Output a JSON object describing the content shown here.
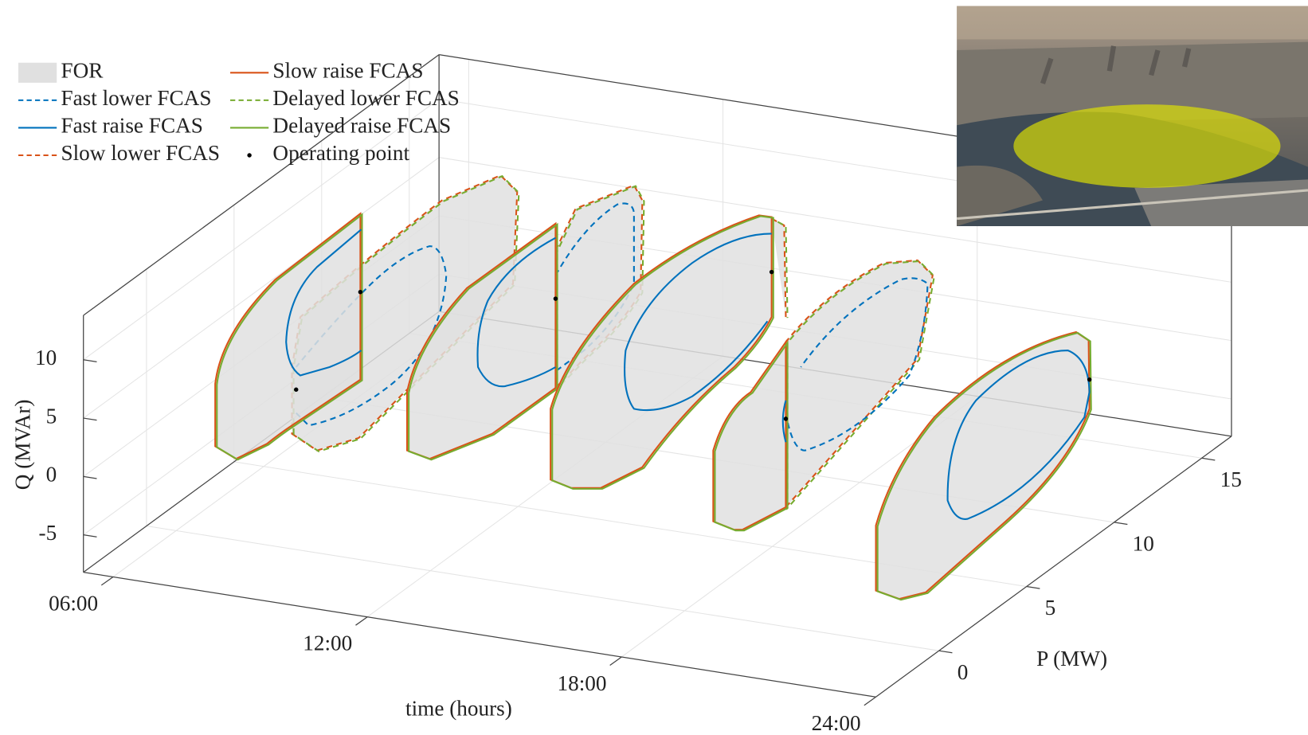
{
  "chart_data": {
    "type": "3d-region",
    "xlabel": "time (hours)",
    "ylabel": "P (MW)",
    "zlabel": "Q (MVAr)",
    "xlim": [
      5.3,
      24
    ],
    "xticks": [
      {
        "value": 6,
        "label": "06:00"
      },
      {
        "value": 12,
        "label": "12:00"
      },
      {
        "value": 18,
        "label": "18:00"
      },
      {
        "value": 24,
        "label": "24:00"
      }
    ],
    "ylim": [
      -3.6,
      16.7
    ],
    "yticks": [
      0,
      5,
      10,
      15
    ],
    "zlim": [
      -8.2,
      13.8
    ],
    "zticks": [
      -5,
      0,
      5,
      10
    ],
    "grid": true,
    "legend": "upper left",
    "series": [
      {
        "name": "FOR",
        "color": "#e0e0e0",
        "style": "patch"
      },
      {
        "name": "Fast lower FCAS",
        "color": "#0072bd",
        "style": "dashed"
      },
      {
        "name": "Fast raise FCAS",
        "color": "#0072bd",
        "style": "solid"
      },
      {
        "name": "Slow lower FCAS",
        "color": "#d95319",
        "style": "dashed"
      },
      {
        "name": "Slow raise FCAS",
        "color": "#d95319",
        "style": "solid"
      },
      {
        "name": "Delayed lower FCAS",
        "color": "#77ac30",
        "style": "dashed"
      },
      {
        "name": "Delayed raise FCAS",
        "color": "#77ac30",
        "style": "solid"
      },
      {
        "name": "Operating point",
        "color": "#000000",
        "style": "dot"
      }
    ]
  }
}
